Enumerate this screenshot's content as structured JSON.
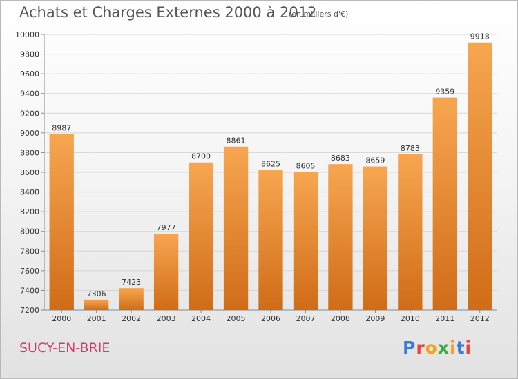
{
  "header": {
    "title": "Achats et Charges Externes 2000 à 2012",
    "unit": "(en milliers d'€)"
  },
  "footer": {
    "city": "SUCY-EN-BRIE",
    "logo": "Proxiti"
  },
  "colors": {
    "bar_light": "#f7a650",
    "bar_dark": "#d06c18",
    "logo_letters": [
      "#3a7bd5",
      "#e8453c",
      "#f4a020",
      "#3aa845",
      "#f4a020",
      "#3a7bd5",
      "#e8453c"
    ]
  },
  "chart_data": {
    "type": "bar",
    "title": "Achats et Charges Externes 2000 à 2012",
    "subtitle": "(en milliers d'€)",
    "categories": [
      "2000",
      "2001",
      "2002",
      "2003",
      "2004",
      "2005",
      "2006",
      "2007",
      "2008",
      "2009",
      "2010",
      "2011",
      "2012"
    ],
    "values": [
      8987,
      7306,
      7423,
      7977,
      8700,
      8861,
      8625,
      8605,
      8683,
      8659,
      8783,
      9359,
      9918
    ],
    "xlabel": "",
    "ylabel": "",
    "ylim": [
      7200,
      10000
    ],
    "yticks": [
      7200,
      7400,
      7600,
      7800,
      8000,
      8200,
      8400,
      8600,
      8800,
      9000,
      9200,
      9400,
      9600,
      9800,
      10000
    ],
    "grid": true,
    "legend": "none"
  }
}
